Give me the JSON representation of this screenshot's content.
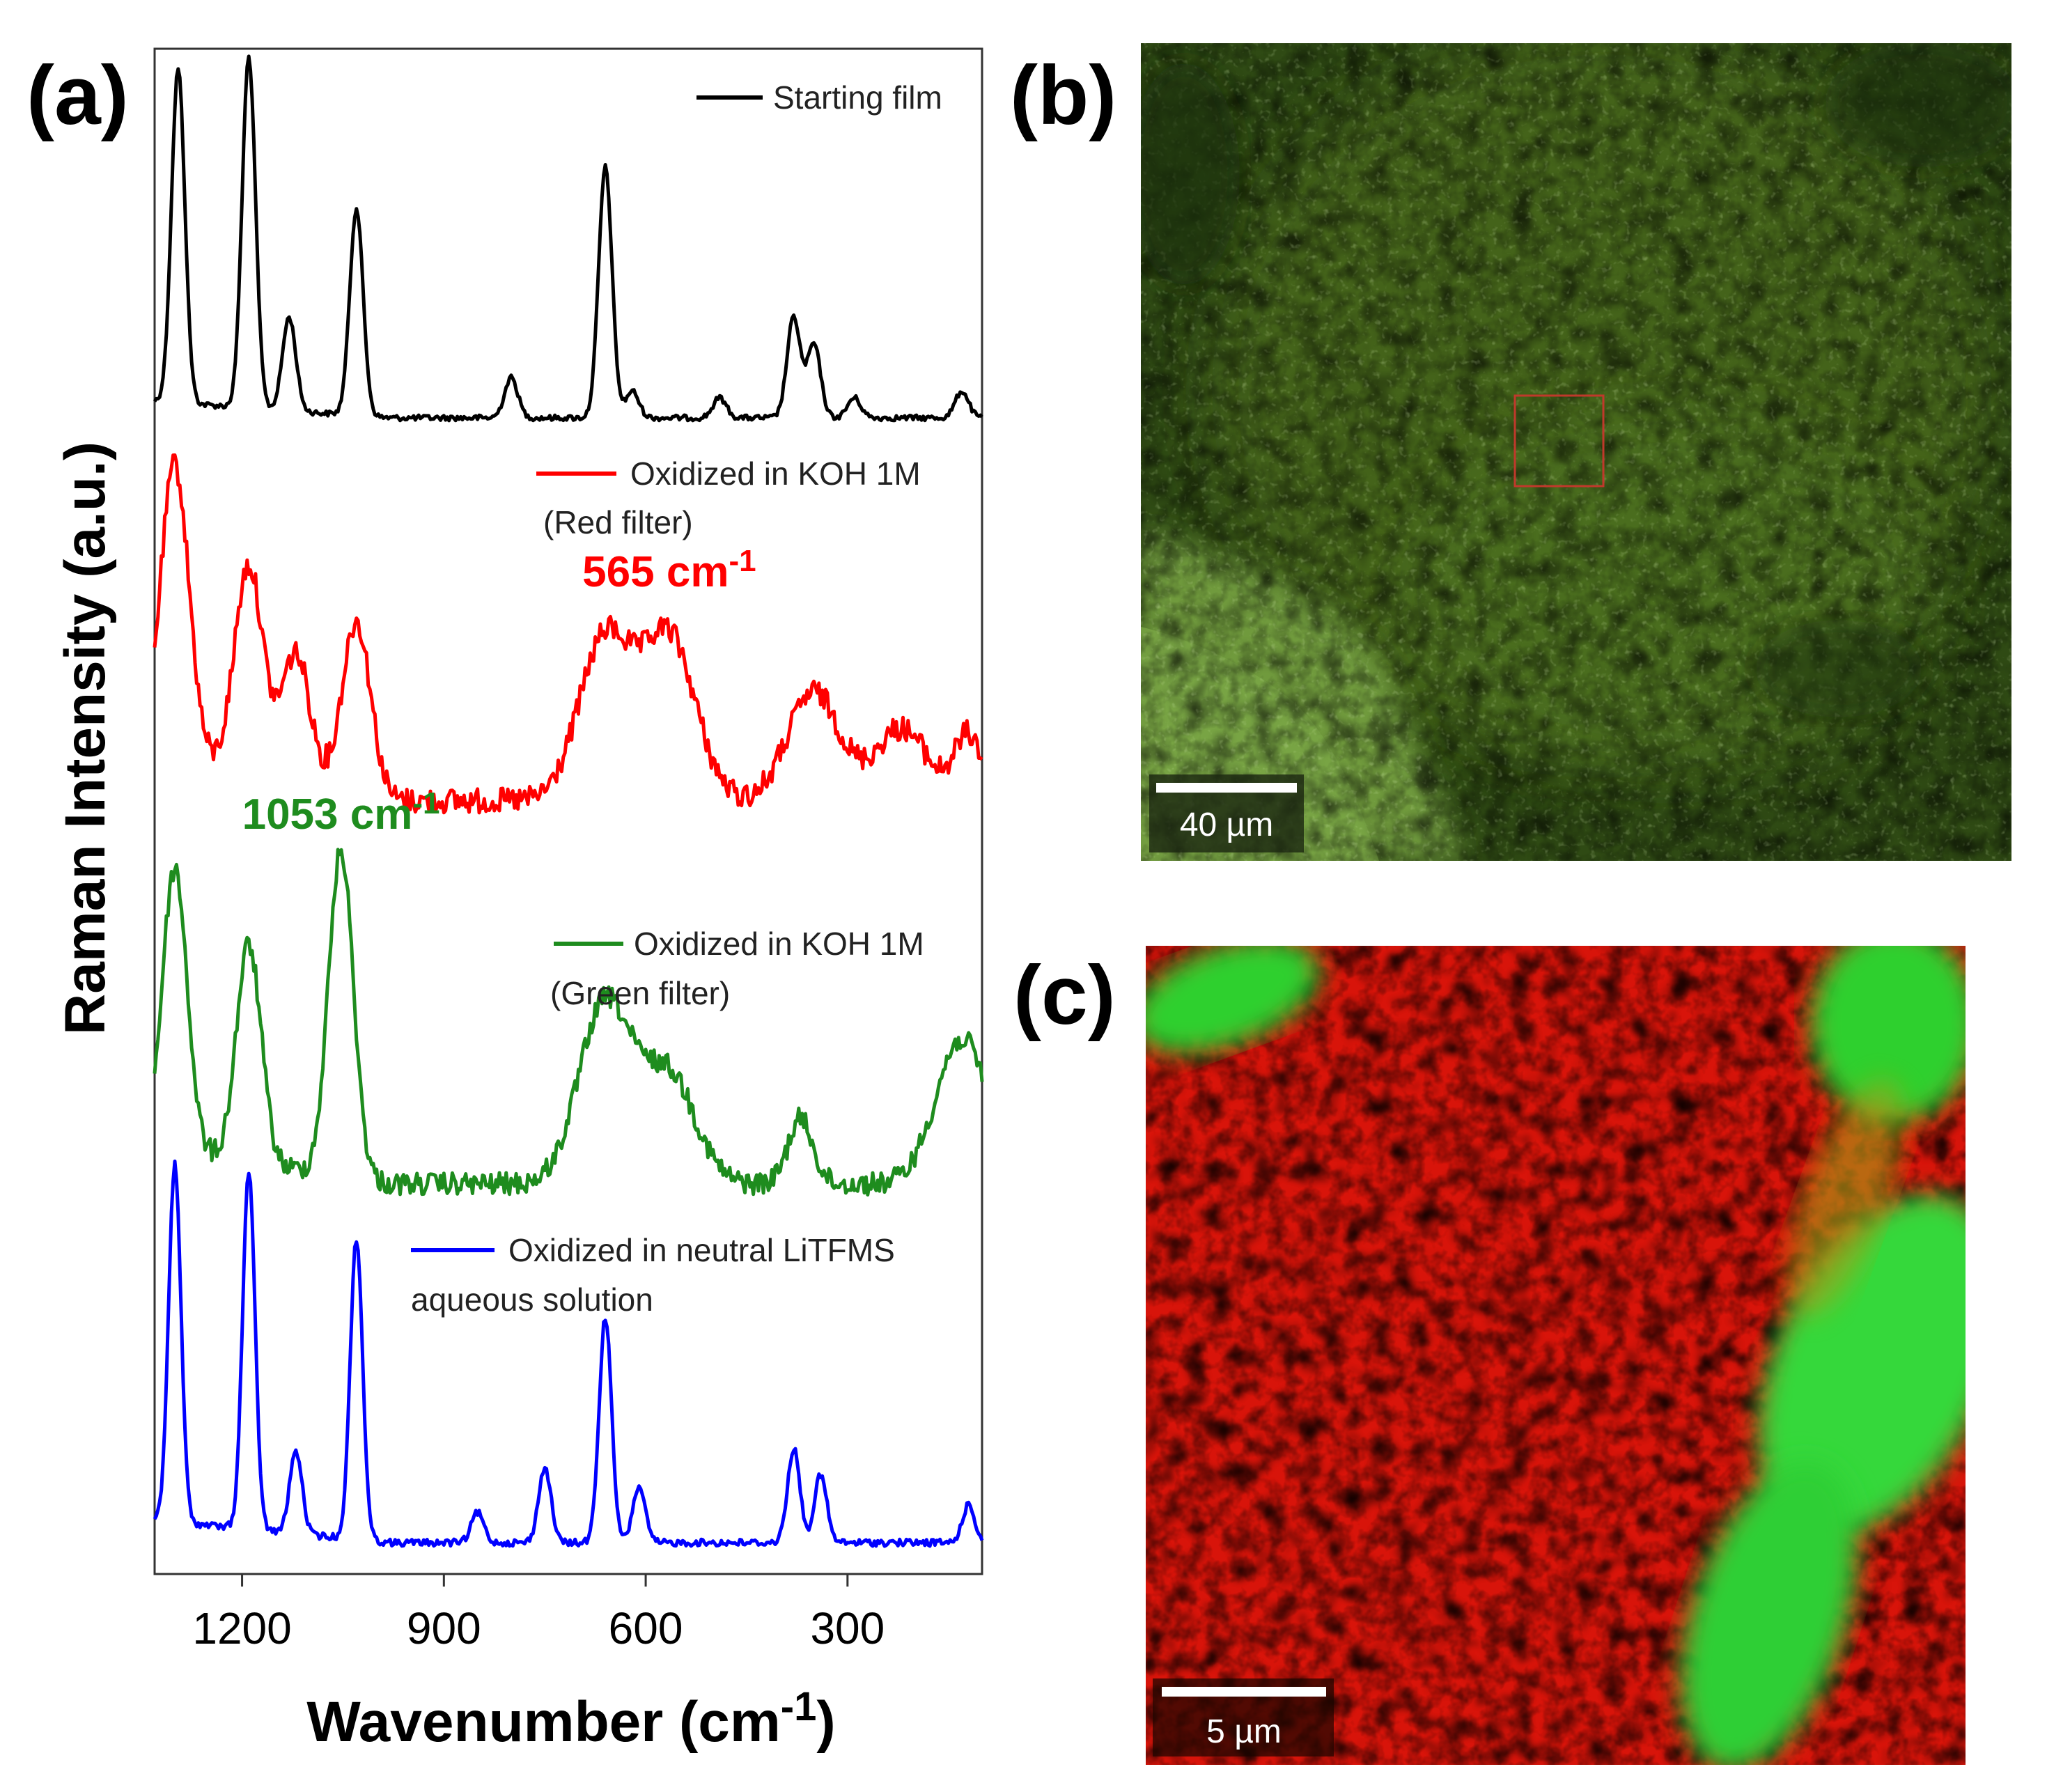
{
  "panel_labels": {
    "a": "(a)",
    "b": "(b)",
    "c": "(c)"
  },
  "chart_data": {
    "type": "line",
    "xlabel": "Wavenumber (cm-1)",
    "xlabel_main": "Wavenumber (cm",
    "xlabel_sup": "-1",
    "xlabel_close": ")",
    "ylabel": "Raman Intensity (a.u.)",
    "xlim": [
      1330,
      100
    ],
    "x_reversed": true,
    "x_ticks": [
      1200,
      900,
      600,
      300
    ],
    "y_ticks_shown": false,
    "legend_placement": "inline above each trace",
    "series": [
      {
        "name": "Starting film",
        "name_line2": "",
        "color": "#000000",
        "peaks": [
          [
            1295,
            1.0
          ],
          [
            1190,
            1.05
          ],
          [
            1130,
            0.28
          ],
          [
            1030,
            0.62
          ],
          [
            800,
            0.12
          ],
          [
            660,
            0.75
          ],
          [
            620,
            0.08
          ],
          [
            490,
            0.06
          ],
          [
            380,
            0.3
          ],
          [
            350,
            0.22
          ],
          [
            290,
            0.06
          ],
          [
            130,
            0.08
          ]
        ]
      },
      {
        "name": "Oxidized in KOH 1M",
        "name_line2": "(Red filter)",
        "color": "#ff0000",
        "peaks": [
          [
            1300,
            0.82
          ],
          [
            1190,
            0.58
          ],
          [
            1120,
            0.36
          ],
          [
            1030,
            0.48
          ],
          [
            660,
            0.45
          ],
          [
            565,
            0.45
          ],
          [
            350,
            0.3
          ],
          [
            220,
            0.2
          ],
          [
            120,
            0.18
          ]
        ]
      },
      {
        "name": "Oxidized in KOH 1M",
        "name_line2": "(Green filter)",
        "color": "#1e8c1e",
        "peaks": [
          [
            1300,
            0.78
          ],
          [
            1190,
            0.6
          ],
          [
            1053,
            0.9
          ],
          [
            660,
            0.5
          ],
          [
            565,
            0.3
          ],
          [
            370,
            0.18
          ],
          [
            130,
            0.4
          ]
        ]
      },
      {
        "name": "Oxidized in neutral LiTFMS",
        "name_line2": "aqueous solution",
        "color": "#0000ff",
        "peaks": [
          [
            1300,
            0.95
          ],
          [
            1190,
            0.95
          ],
          [
            1120,
            0.22
          ],
          [
            1030,
            0.8
          ],
          [
            850,
            0.08
          ],
          [
            750,
            0.2
          ],
          [
            660,
            0.6
          ],
          [
            610,
            0.15
          ],
          [
            380,
            0.25
          ],
          [
            340,
            0.18
          ],
          [
            120,
            0.1
          ]
        ]
      }
    ],
    "annotations": [
      {
        "text": "565 cm-1",
        "main": "565 cm",
        "sup": "-1",
        "x": 565,
        "color": "#ff0000"
      },
      {
        "text": "1053 cm-1",
        "main": "1053 cm",
        "sup": "-1",
        "x": 1053,
        "color": "#1e8c1e"
      }
    ]
  },
  "micrograph_b": {
    "scale_bar": "40 µm"
  },
  "micrograph_c": {
    "scale_bar": "5 µm"
  }
}
